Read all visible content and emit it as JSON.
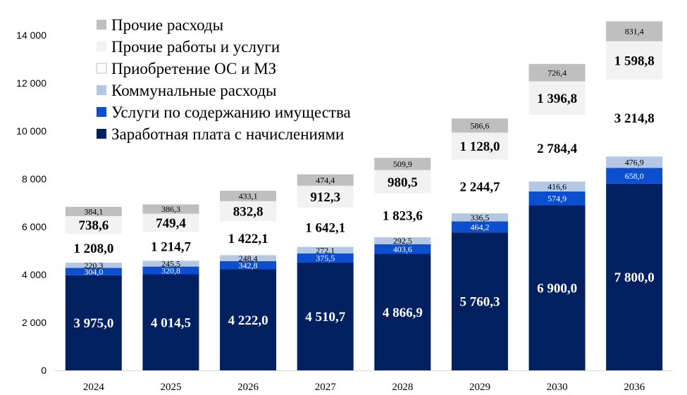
{
  "chart_data": {
    "type": "bar",
    "stacked": true,
    "title": "",
    "xlabel": "",
    "ylabel": "",
    "ylim": [
      0,
      14000
    ],
    "yticks": [
      0,
      2000,
      4000,
      6000,
      8000,
      10000,
      12000,
      14000
    ],
    "ytick_labels": [
      "0",
      "2 000",
      "4 000",
      "6 000",
      "8 000",
      "10 000",
      "12 000",
      "14 000"
    ],
    "grid": false,
    "legend_position": "top-left",
    "categories": [
      "2024",
      "2025",
      "2026",
      "2027",
      "2028",
      "2029",
      "2030",
      "2036"
    ],
    "series": [
      {
        "name": "Заработная плата с начислениями",
        "color": "#002060",
        "label_color": "#ffffff",
        "label_style": "big",
        "values": [
          3975.0,
          4014.5,
          4222.0,
          4510.7,
          4866.9,
          5760.3,
          6900.0,
          7800.0
        ],
        "labels": [
          "3 975,0",
          "4 014,5",
          "4 222,0",
          "4 510,7",
          "4 866,9",
          "5 760,3",
          "6 900,0",
          "7 800,0"
        ]
      },
      {
        "name": "Услуги по содержанию имущества",
        "color": "#0b4fd0",
        "label_color": "#ffffff",
        "label_style": "small",
        "values": [
          304.0,
          320.8,
          342.8,
          375.5,
          403.6,
          464.2,
          574.9,
          658.0
        ],
        "labels": [
          "304,0",
          "320,8",
          "342,8",
          "375,5",
          "403,6",
          "464,2",
          "574,9",
          "658,0"
        ]
      },
      {
        "name": "Коммунальные расходы",
        "color": "#b4c8e6",
        "label_color": "#000000",
        "label_style": "small",
        "values": [
          220.3,
          245.5,
          248.4,
          272.1,
          292.5,
          336.5,
          416.6,
          476.9
        ],
        "labels": [
          "220,3",
          "245,5",
          "248,4",
          "272,1",
          "292,5",
          "336,5",
          "416,6",
          "476,9"
        ]
      },
      {
        "name": "Приобретение ОС и МЗ",
        "color": "#ffffff",
        "label_color": "#000000",
        "label_style": "big",
        "values": [
          1208.0,
          1214.7,
          1422.1,
          1642.1,
          1823.6,
          2244.7,
          2784.4,
          3214.8
        ],
        "labels": [
          "1 208,0",
          "1 214,7",
          "1 422,1",
          "1 642,1",
          "1 823,6",
          "2 244,7",
          "2 784,4",
          "3 214,8"
        ]
      },
      {
        "name": "Прочие работы и услуги",
        "color": "#f2f2f2",
        "label_color": "#000000",
        "label_style": "big",
        "values": [
          738.6,
          749.4,
          832.8,
          912.3,
          980.5,
          1128.0,
          1396.8,
          1598.8
        ],
        "labels": [
          "738,6",
          "749,4",
          "832,8",
          "912,3",
          "980,5",
          "1 128,0",
          "1 396,8",
          "1 598,8"
        ]
      },
      {
        "name": "Прочие расходы",
        "color": "#bfbfbf",
        "label_color": "#000000",
        "label_style": "small",
        "values": [
          384.1,
          386.3,
          433.1,
          474.4,
          509.9,
          586.6,
          726.4,
          831.4
        ],
        "labels": [
          "384,1",
          "386,3",
          "433,1",
          "474,4",
          "509,9",
          "586,6",
          "726,4",
          "831,4"
        ]
      }
    ],
    "legend_order": [
      5,
      4,
      3,
      2,
      1,
      0
    ]
  }
}
